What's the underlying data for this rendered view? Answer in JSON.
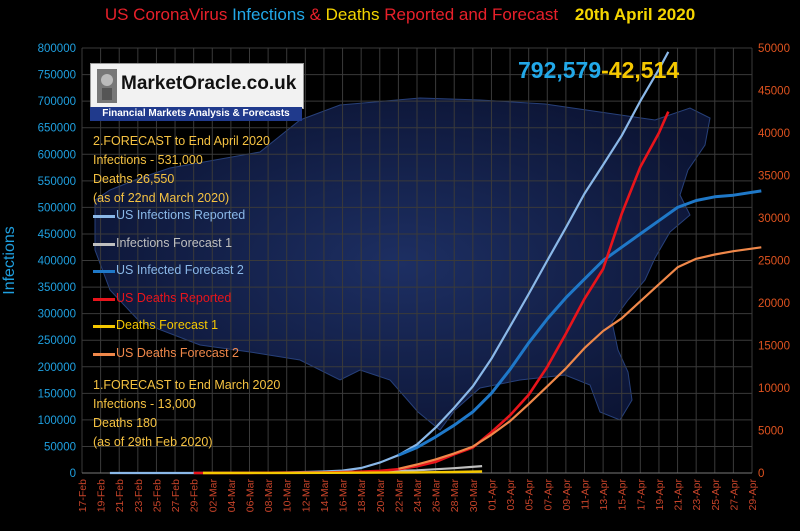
{
  "title": {
    "part1": "US CoronaVirus ",
    "part2": "Infections",
    "part3": " & ",
    "part4": "Deaths",
    "part5": " Reported and Forecast",
    "date": "20th April 2020"
  },
  "logo": {
    "name": "MarketOracle.co.uk",
    "tagline": "Financial Markets Analysis & Forecasts"
  },
  "headline": {
    "infections": "792,579",
    "deaths": "-42,514"
  },
  "forecast2": {
    "line1": "2.FORECAST  to End April 2020",
    "line2": "Infections - 531,000",
    "line3": "Deaths 26,550",
    "line4": "(as of  22nd March  2020)"
  },
  "forecast1": {
    "line1": "1.FORECAST to End March 2020",
    "line2": "Infections - 13,000",
    "line3": "Deaths 180",
    "line4": "(as of  29th Feb  2020)"
  },
  "colors": {
    "infections_reported": "#8ab8e8",
    "infections_forecast1": "#bfbfbf",
    "infected_forecast2": "#1f78c8",
    "deaths_reported": "#e8141b",
    "deaths_forecast1": "#f5c800",
    "deaths_forecast2": "#f0884a",
    "left_axis": "#1fa0e0",
    "right_axis": "#e0531f",
    "forecast_text": "#f5c242",
    "title_red": "#e8202a",
    "title_blue": "#22a8e8",
    "title_yellow": "#f5d500"
  },
  "chart_data": {
    "type": "line",
    "title": "US CoronaVirus Infections & Deaths Reported and Forecast 20th April 2020",
    "ylabel": "Infections",
    "y2label": "",
    "ylim": [
      0,
      800000
    ],
    "y2lim": [
      0,
      50000
    ],
    "yticks": [
      "0",
      "50000",
      "100000",
      "150000",
      "200000",
      "250000",
      "300000",
      "350000",
      "400000",
      "450000",
      "500000",
      "550000",
      "600000",
      "650000",
      "700000",
      "750000",
      "800000"
    ],
    "y2ticks": [
      "0",
      "5000",
      "10000",
      "15000",
      "20000",
      "25000",
      "30000",
      "35000",
      "40000",
      "45000",
      "50000"
    ],
    "x_labels": [
      "17-Feb",
      "19-Feb",
      "21-Feb",
      "23-Feb",
      "25-Feb",
      "27-Feb",
      "29-Feb",
      "02-Mar",
      "04-Mar",
      "06-Mar",
      "08-Mar",
      "10-Mar",
      "12-Mar",
      "14-Mar",
      "16-Mar",
      "18-Mar",
      "20-Mar",
      "22-Mar",
      "24-Mar",
      "26-Mar",
      "28-Mar",
      "30-Mar",
      "01-Apr",
      "03-Apr",
      "05-Apr",
      "07-Apr",
      "09-Apr",
      "11-Apr",
      "13-Apr",
      "15-Apr",
      "17-Apr",
      "19-Apr",
      "21-Apr",
      "23-Apr",
      "25-Apr",
      "27-Apr",
      "29-Apr"
    ],
    "grid": true,
    "series": [
      {
        "name": "US Infections Reported",
        "axis": "left",
        "x": [
          "20-Feb",
          "29-Feb",
          "06-Mar",
          "10-Mar",
          "14-Mar",
          "16-Mar",
          "18-Mar",
          "20-Mar",
          "22-Mar",
          "24-Mar",
          "26-Mar",
          "28-Mar",
          "30-Mar",
          "01-Apr",
          "03-Apr",
          "05-Apr",
          "07-Apr",
          "09-Apr",
          "11-Apr",
          "13-Apr",
          "15-Apr",
          "17-Apr",
          "19-Apr",
          "20-Apr"
        ],
        "y": [
          15,
          70,
          320,
          1000,
          2800,
          4600,
          9400,
          19600,
          33500,
          53700,
          85500,
          123000,
          163000,
          215000,
          276000,
          337000,
          400000,
          462000,
          526000,
          580000,
          635000,
          700000,
          760000,
          792579
        ]
      },
      {
        "name": "Infections Forecast 1",
        "axis": "left",
        "x": [
          "01-Mar",
          "10-Mar",
          "18-Mar",
          "24-Mar",
          "28-Mar",
          "31-Mar"
        ],
        "y": [
          100,
          500,
          1800,
          5000,
          9000,
          13000
        ]
      },
      {
        "name": "US Infected Forecast 2",
        "axis": "left",
        "x": [
          "22-Mar",
          "24-Mar",
          "26-Mar",
          "28-Mar",
          "30-Mar",
          "01-Apr",
          "03-Apr",
          "05-Apr",
          "07-Apr",
          "09-Apr",
          "11-Apr",
          "13-Apr",
          "15-Apr",
          "17-Apr",
          "19-Apr",
          "21-Apr",
          "23-Apr",
          "25-Apr",
          "27-Apr",
          "30-Apr"
        ],
        "y": [
          33500,
          48000,
          68000,
          90000,
          115000,
          150000,
          195000,
          245000,
          290000,
          330000,
          365000,
          400000,
          425000,
          450000,
          475000,
          500000,
          513000,
          520000,
          523000,
          531000
        ]
      },
      {
        "name": "US Deaths Reported",
        "axis": "right",
        "x": [
          "29-Feb",
          "06-Mar",
          "10-Mar",
          "14-Mar",
          "18-Mar",
          "20-Mar",
          "22-Mar",
          "24-Mar",
          "26-Mar",
          "28-Mar",
          "30-Mar",
          "01-Apr",
          "03-Apr",
          "05-Apr",
          "07-Apr",
          "09-Apr",
          "11-Apr",
          "13-Apr",
          "15-Apr",
          "17-Apr",
          "19-Apr",
          "20-Apr"
        ],
        "y": [
          1,
          14,
          30,
          60,
          150,
          250,
          450,
          800,
          1300,
          2200,
          3000,
          4800,
          6800,
          9200,
          12500,
          16400,
          20500,
          24000,
          30500,
          36000,
          40000,
          42514
        ]
      },
      {
        "name": "Deaths Forecast 1",
        "axis": "right",
        "x": [
          "01-Mar",
          "10-Mar",
          "18-Mar",
          "24-Mar",
          "28-Mar",
          "31-Mar"
        ],
        "y": [
          2,
          10,
          30,
          70,
          120,
          180
        ]
      },
      {
        "name": "US Deaths Forecast 2",
        "axis": "right",
        "x": [
          "22-Mar",
          "24-Mar",
          "26-Mar",
          "28-Mar",
          "30-Mar",
          "01-Apr",
          "03-Apr",
          "05-Apr",
          "07-Apr",
          "09-Apr",
          "11-Apr",
          "13-Apr",
          "15-Apr",
          "17-Apr",
          "19-Apr",
          "21-Apr",
          "23-Apr",
          "25-Apr",
          "27-Apr",
          "30-Apr"
        ],
        "y": [
          500,
          1000,
          1600,
          2300,
          3100,
          4500,
          6100,
          8100,
          10200,
          12300,
          14700,
          16700,
          18200,
          20200,
          22200,
          24200,
          25200,
          25700,
          26100,
          26550
        ]
      }
    ]
  }
}
